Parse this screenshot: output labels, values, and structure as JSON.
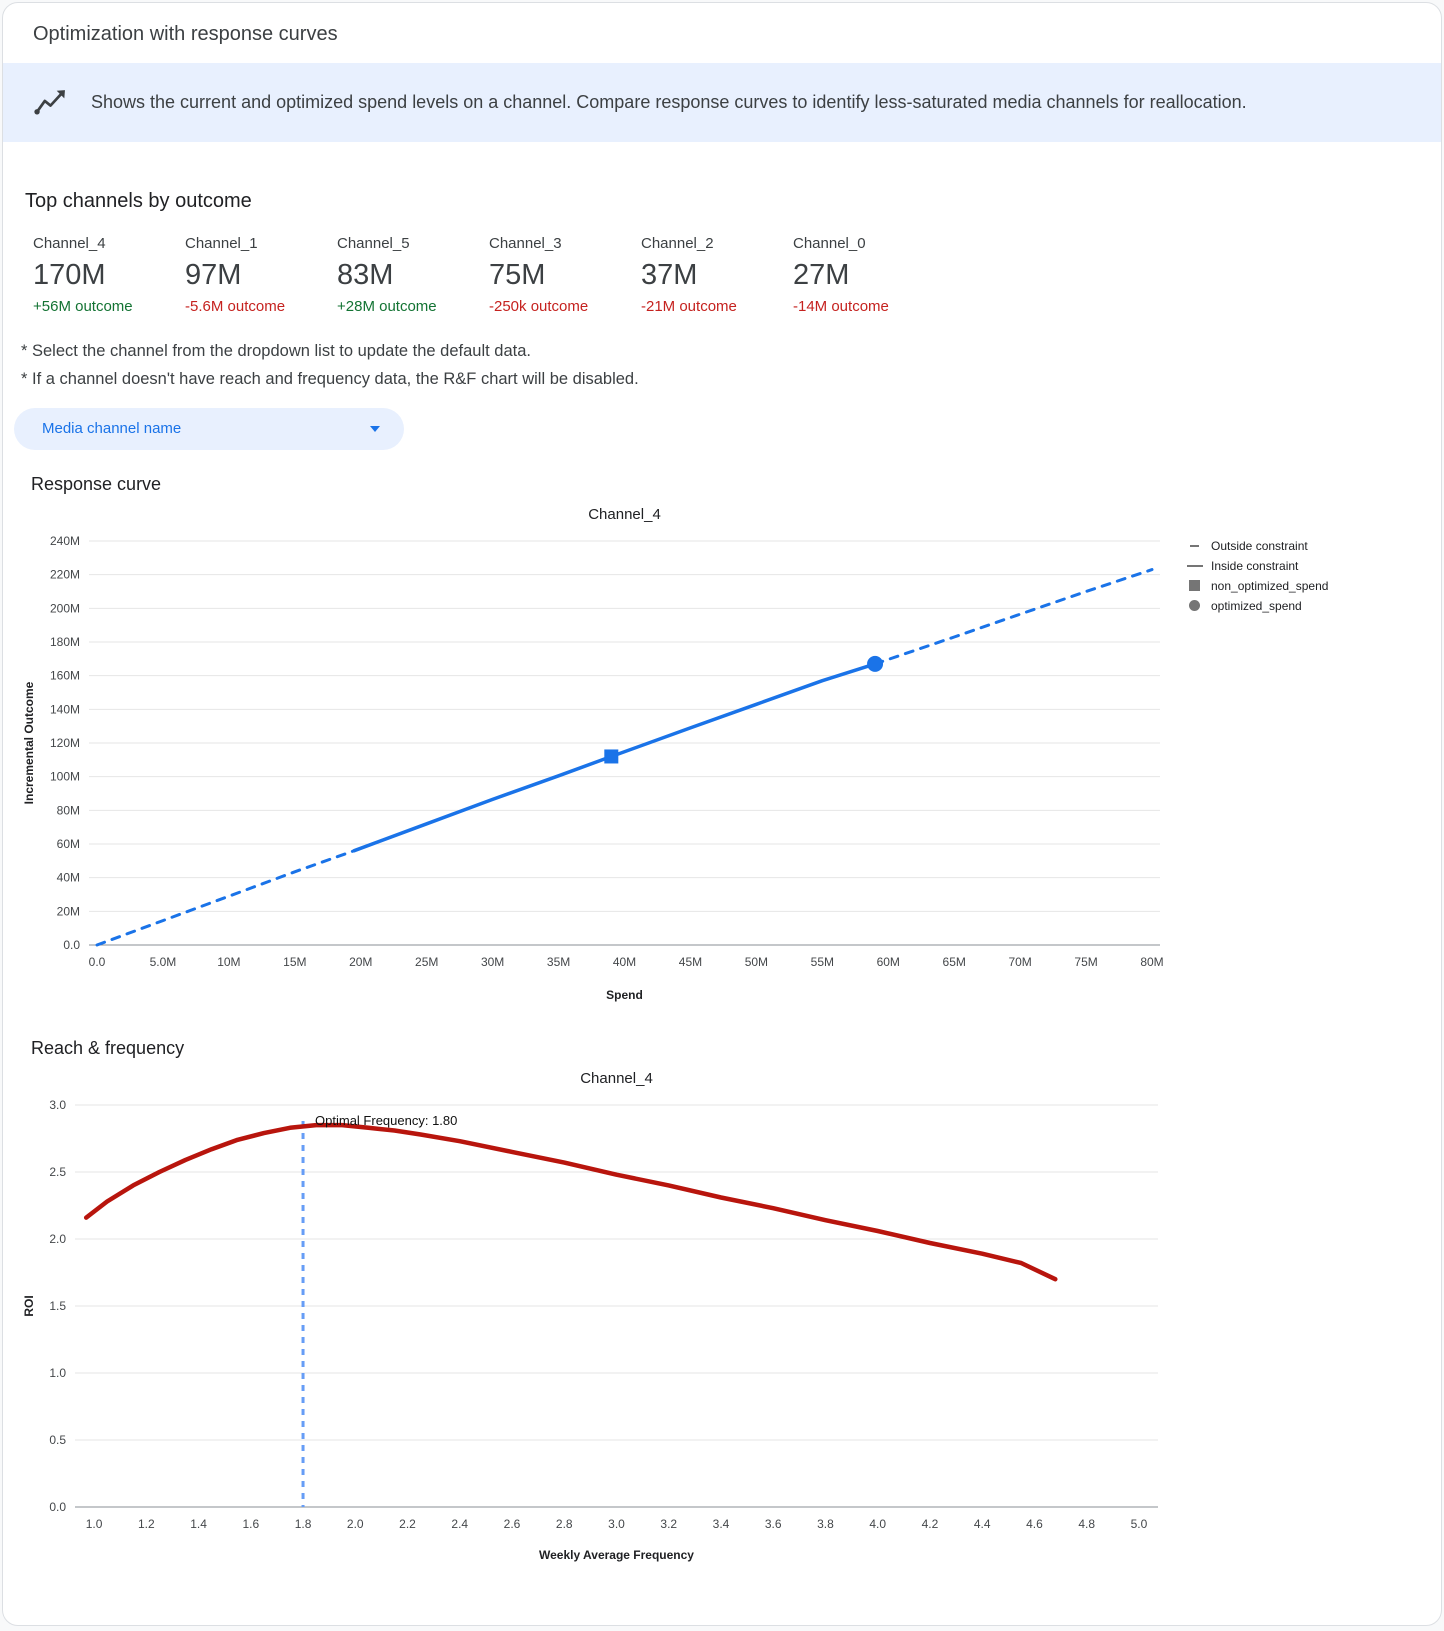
{
  "window": {
    "title": "Optimization with response curves"
  },
  "banner": {
    "icon": "insights-icon",
    "text": "Shows the current and optimized spend levels on a channel. Compare response curves to identify less-saturated media channels for reallocation."
  },
  "top_channels": {
    "heading": "Top channels by outcome",
    "channels": [
      {
        "name": "Channel_4",
        "value": "170M",
        "delta": "+56M outcome",
        "trend": "positive"
      },
      {
        "name": "Channel_1",
        "value": "97M",
        "delta": "-5.6M outcome",
        "trend": "negative"
      },
      {
        "name": "Channel_5",
        "value": "83M",
        "delta": "+28M outcome",
        "trend": "positive"
      },
      {
        "name": "Channel_3",
        "value": "75M",
        "delta": "-250k outcome",
        "trend": "negative"
      },
      {
        "name": "Channel_2",
        "value": "37M",
        "delta": "-21M outcome",
        "trend": "negative"
      },
      {
        "name": "Channel_0",
        "value": "27M",
        "delta": "-14M outcome",
        "trend": "negative"
      }
    ]
  },
  "notes": [
    "* Select the channel from the dropdown list to update the default data.",
    "* If a channel doesn't have reach and frequency data, the R&F chart will be disabled."
  ],
  "channel_dropdown": {
    "label": "Media channel name"
  },
  "sections": {
    "response_curve": "Response curve",
    "reach_frequency": "Reach & frequency"
  },
  "colors": {
    "accent_blue": "#1a73e8",
    "banner_bg": "#e8f0fe",
    "positive_green": "#137333",
    "negative_red": "#c5221f",
    "roi_red": "#b8150d",
    "optimal_freq_blue": "#669df6",
    "legend_gray": "#757575"
  },
  "chart_data": [
    {
      "id": "response_curve",
      "type": "line",
      "title": "Channel_4",
      "xlabel": "Spend",
      "ylabel": "Incremental Outcome",
      "units": "values in millions",
      "xlim": [
        0,
        80
      ],
      "ylim": [
        0,
        240
      ],
      "xticks": {
        "values": [
          0,
          5,
          10,
          15,
          20,
          25,
          30,
          35,
          40,
          45,
          50,
          55,
          60,
          65,
          70,
          75,
          80
        ],
        "labels": [
          "0.0",
          "5.0M",
          "10M",
          "15M",
          "20M",
          "25M",
          "30M",
          "35M",
          "40M",
          "45M",
          "50M",
          "55M",
          "60M",
          "65M",
          "70M",
          "75M",
          "80M"
        ]
      },
      "yticks": {
        "values": [
          0,
          20,
          40,
          60,
          80,
          100,
          120,
          140,
          160,
          180,
          200,
          220,
          240
        ],
        "labels": [
          "0.0",
          "20M",
          "40M",
          "60M",
          "80M",
          "100M",
          "120M",
          "140M",
          "160M",
          "180M",
          "200M",
          "220M",
          "240M"
        ]
      },
      "series": [
        {
          "name": "outside_constraint_low",
          "style": "dashed",
          "color": "#1a73e8",
          "width": 3,
          "points": [
            [
              0,
              0
            ],
            [
              5,
              14.5
            ],
            [
              10,
              29
            ],
            [
              15,
              43.5
            ],
            [
              19.5,
              56
            ]
          ]
        },
        {
          "name": "inside_constraint",
          "style": "solid",
          "color": "#1a73e8",
          "width": 3.5,
          "points": [
            [
              19.5,
              56
            ],
            [
              25,
              72
            ],
            [
              30,
              86.5
            ],
            [
              35,
              100.5
            ],
            [
              39,
              112
            ],
            [
              45,
              129
            ],
            [
              50,
              143
            ],
            [
              55,
              157
            ],
            [
              59,
              167
            ]
          ]
        },
        {
          "name": "outside_constraint_high",
          "style": "dashed",
          "color": "#1a73e8",
          "width": 3,
          "points": [
            [
              59,
              167
            ],
            [
              65,
              183
            ],
            [
              70,
              196.5
            ],
            [
              75,
              210
            ],
            [
              80,
              223
            ]
          ]
        }
      ],
      "markers": [
        {
          "name": "non_optimized_spend",
          "shape": "square",
          "x": 39,
          "y": 112,
          "color": "#1a73e8"
        },
        {
          "name": "optimized_spend",
          "shape": "circle",
          "x": 59,
          "y": 167,
          "color": "#1a73e8"
        }
      ],
      "legend": [
        {
          "label": "Outside constraint",
          "swatch": "dash"
        },
        {
          "label": "Inside constraint",
          "swatch": "line"
        },
        {
          "label": "non_optimized_spend",
          "swatch": "square"
        },
        {
          "label": "optimized_spend",
          "swatch": "circle"
        }
      ]
    },
    {
      "id": "reach_frequency",
      "type": "line",
      "title": "Channel_4",
      "xlabel": "Weekly Average Frequency",
      "ylabel": "ROI",
      "xlim": [
        0.95,
        5.05
      ],
      "ylim": [
        0,
        3
      ],
      "xticks": {
        "values": [
          1,
          1.2,
          1.4,
          1.6,
          1.8,
          2,
          2.2,
          2.4,
          2.6,
          2.8,
          3,
          3.2,
          3.4,
          3.6,
          3.8,
          4,
          4.2,
          4.4,
          4.6,
          4.8,
          5
        ],
        "labels": [
          "1.0",
          "1.2",
          "1.4",
          "1.6",
          "1.8",
          "2.0",
          "2.2",
          "2.4",
          "2.6",
          "2.8",
          "3.0",
          "3.2",
          "3.4",
          "3.6",
          "3.8",
          "4.0",
          "4.2",
          "4.4",
          "4.6",
          "4.8",
          "5.0"
        ]
      },
      "yticks": {
        "values": [
          0,
          0.5,
          1,
          1.5,
          2,
          2.5,
          3
        ],
        "labels": [
          "0.0",
          "0.5",
          "1.0",
          "1.5",
          "2.0",
          "2.5",
          "3.0"
        ]
      },
      "series": [
        {
          "name": "roi_curve",
          "style": "solid",
          "color": "#b8150d",
          "width": 4.5,
          "points": [
            [
              0.97,
              2.16
            ],
            [
              1.05,
              2.28
            ],
            [
              1.15,
              2.4
            ],
            [
              1.25,
              2.5
            ],
            [
              1.35,
              2.59
            ],
            [
              1.45,
              2.67
            ],
            [
              1.55,
              2.74
            ],
            [
              1.65,
              2.79
            ],
            [
              1.75,
              2.83
            ],
            [
              1.85,
              2.85
            ],
            [
              1.95,
              2.85
            ],
            [
              2.05,
              2.83
            ],
            [
              2.15,
              2.81
            ],
            [
              2.25,
              2.78
            ],
            [
              2.4,
              2.73
            ],
            [
              2.6,
              2.65
            ],
            [
              2.8,
              2.57
            ],
            [
              3.0,
              2.48
            ],
            [
              3.2,
              2.4
            ],
            [
              3.4,
              2.31
            ],
            [
              3.6,
              2.23
            ],
            [
              3.8,
              2.14
            ],
            [
              4.0,
              2.06
            ],
            [
              4.2,
              1.97
            ],
            [
              4.4,
              1.89
            ],
            [
              4.55,
              1.82
            ],
            [
              4.68,
              1.7
            ]
          ]
        }
      ],
      "vline": {
        "x": 1.8,
        "color": "#669df6",
        "label": "Optimal Frequency: 1.80",
        "value": 1.8
      }
    }
  ]
}
